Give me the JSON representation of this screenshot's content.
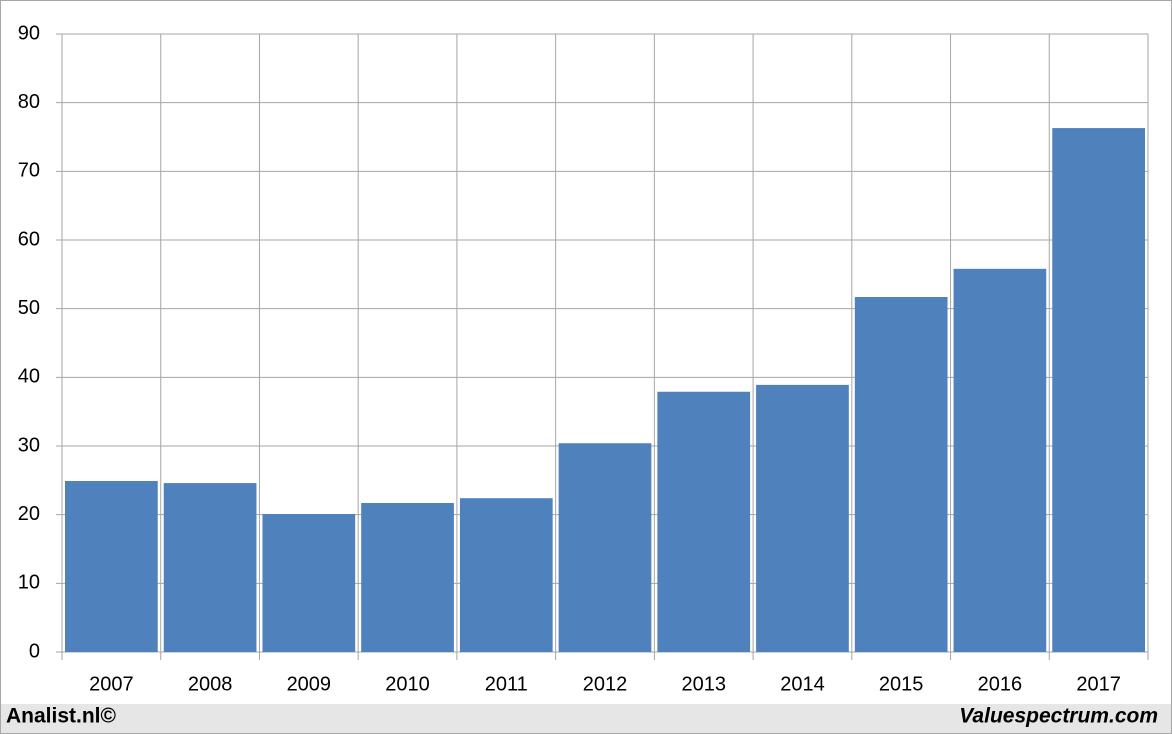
{
  "chart_data": {
    "type": "bar",
    "categories": [
      "2007",
      "2008",
      "2009",
      "2010",
      "2011",
      "2012",
      "2013",
      "2014",
      "2015",
      "2016",
      "2017"
    ],
    "values": [
      24.9,
      24.6,
      20.1,
      21.7,
      22.4,
      30.4,
      37.9,
      38.9,
      51.7,
      55.8,
      76.3
    ],
    "color": "#4f81bd",
    "ylim": [
      0,
      90
    ],
    "yticks": [
      0,
      10,
      20,
      30,
      40,
      50,
      60,
      70,
      80,
      90
    ],
    "grid": true,
    "footer_left": "Analist.nl©",
    "footer_right": "Valuespectrum.com"
  }
}
